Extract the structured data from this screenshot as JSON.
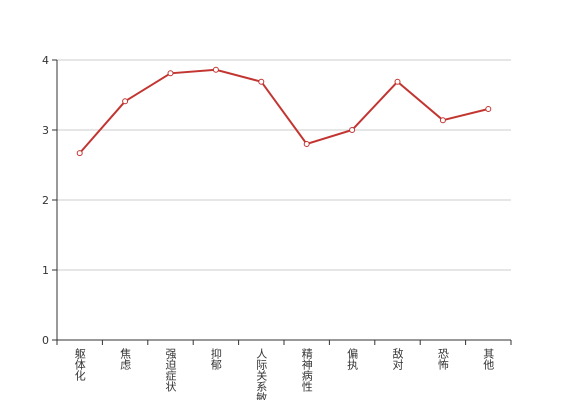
{
  "chart_data": {
    "type": "line",
    "categories": [
      "躯体化",
      "焦虑",
      "强迫症状",
      "抑郁",
      "人际关系敏感",
      "精神病性",
      "偏执",
      "敌对",
      "恐怖",
      "其他"
    ],
    "series": [
      {
        "color": "#c23531",
        "values": [
          2.67,
          3.41,
          3.81,
          3.86,
          3.69,
          2.8,
          3.0,
          3.69,
          3.14,
          3.3
        ]
      }
    ],
    "ylim": [
      0,
      4
    ],
    "yticks": [
      0,
      1,
      2,
      3,
      4
    ],
    "grid": true
  }
}
